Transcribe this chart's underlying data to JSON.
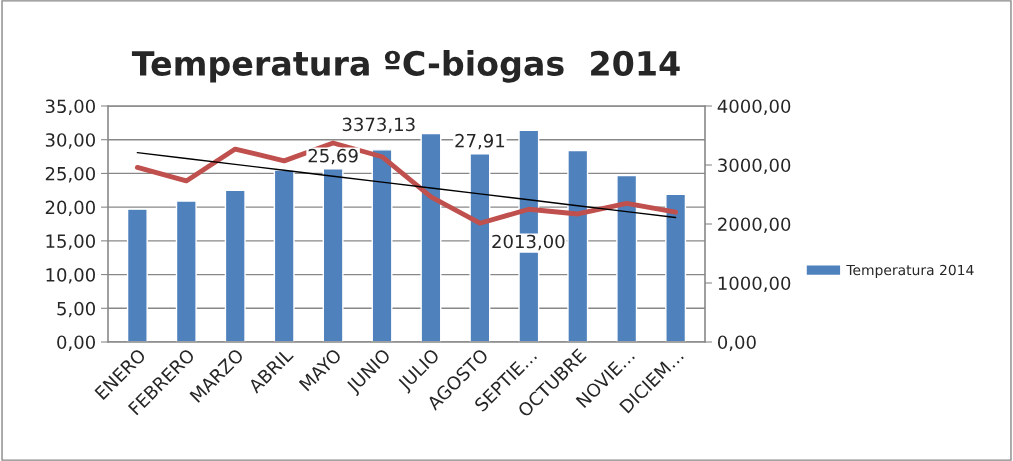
{
  "chart_data": {
    "type": "bar",
    "title": "Temperatura ºC-biogas  2014",
    "categories": [
      "ENERO",
      "FEBRERO",
      "MARZO",
      "ABRIL",
      "MAYO",
      "JUNIO",
      "JULIO",
      "AGOSTO",
      "SEPTIE…",
      "OCTUBRE",
      "NOVIE…",
      "DICIEM…"
    ],
    "series": [
      {
        "name": "Temperatura 2014",
        "color": "#4f81bd",
        "values": [
          19.7,
          20.9,
          22.5,
          25.5,
          25.69,
          28.5,
          30.9,
          27.91,
          31.4,
          28.4,
          24.7,
          21.9
        ],
        "value_labels": [
          null,
          null,
          null,
          null,
          "25,69",
          null,
          null,
          "27,91",
          null,
          null,
          null,
          null
        ]
      },
      {
        "type": "line",
        "axis": "y2",
        "color": "#c0504d",
        "values": [
          2960,
          2730,
          3270,
          3070,
          3373.13,
          3140,
          2460,
          2013.0,
          2250,
          2170,
          2350,
          2200
        ],
        "value_labels": [
          null,
          null,
          null,
          null,
          "3373,13",
          null,
          null,
          "2013,00",
          null,
          null,
          null,
          null
        ]
      },
      {
        "type": "line",
        "axis": "y2",
        "color": "#000000",
        "values": [
          3210,
          3110,
          3010,
          2910,
          2810,
          2710,
          2610,
          2510,
          2410,
          2310,
          2210,
          2110
        ]
      }
    ],
    "ylim": [
      0,
      35
    ],
    "yticks": [
      {
        "value": 0,
        "label": "0,00"
      },
      {
        "value": 5,
        "label": "5,00"
      },
      {
        "value": 10,
        "label": "10,00"
      },
      {
        "value": 15,
        "label": "15,00"
      },
      {
        "value": 20,
        "label": "20,00"
      },
      {
        "value": 25,
        "label": "25,00"
      },
      {
        "value": 30,
        "label": "30,00"
      },
      {
        "value": 35,
        "label": "35,00"
      }
    ],
    "y2lim": [
      0,
      4000
    ],
    "y2ticks": [
      {
        "value": 0,
        "label": "0,00"
      },
      {
        "value": 1000,
        "label": "1000,00"
      },
      {
        "value": 2000,
        "label": "2000,00"
      },
      {
        "value": 3000,
        "label": "3000,00"
      },
      {
        "value": 4000,
        "label": "4000,00"
      }
    ],
    "grid": "y",
    "legend": "right"
  }
}
